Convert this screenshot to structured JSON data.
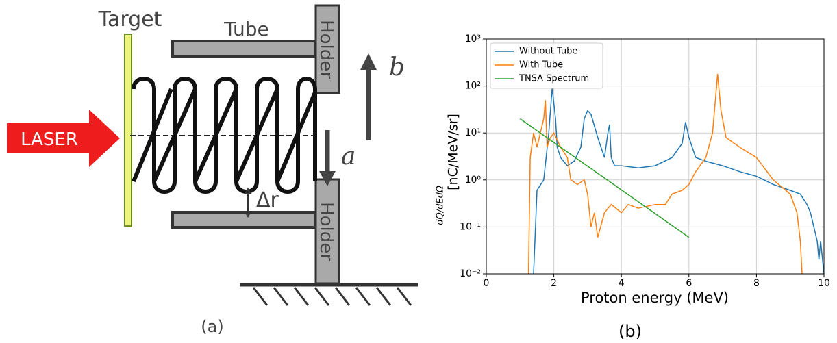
{
  "diagram": {
    "target": "Target",
    "tube": "Tube",
    "holder_top": "Holder",
    "holder_bottom": "Holder",
    "laser": "LASER",
    "arrow_b": "b",
    "arrow_a": "a",
    "gap": "Δr",
    "caption": "(a)"
  },
  "chart_data": {
    "type": "line",
    "caption": "(b)",
    "xlabel": "Proton energy (MeV)",
    "ylabel_fraction": "dQ/dEdΩ",
    "ylabel_units": "[nC/MeV/sr]",
    "log_y": true,
    "grid": true,
    "legend": "upper-left",
    "xlim": [
      0,
      10
    ],
    "xticks": [
      0,
      2,
      4,
      6,
      8,
      10
    ],
    "ylim": [
      0.01,
      1000
    ],
    "yticks": [
      {
        "value": 0.01,
        "label": "10⁻²"
      },
      {
        "value": 0.1,
        "label": "10⁻¹"
      },
      {
        "value": 1,
        "label": "10⁰"
      },
      {
        "value": 10,
        "label": "10¹"
      },
      {
        "value": 100,
        "label": "10²"
      },
      {
        "value": 1000,
        "label": "10³"
      }
    ],
    "series": [
      {
        "name": "Without Tube",
        "color": "#1f77b4",
        "x": [
          1.4,
          1.5,
          1.7,
          1.85,
          1.95,
          2.05,
          2.1,
          2.2,
          2.4,
          2.6,
          2.8,
          2.9,
          3.0,
          3.1,
          3.3,
          3.5,
          3.6,
          3.65,
          3.7,
          3.8,
          4.0,
          4.5,
          5.0,
          5.5,
          5.8,
          5.9,
          6.0,
          6.2,
          6.5,
          7.0,
          7.5,
          8.0,
          8.5,
          9.0,
          9.3,
          9.5,
          9.6,
          9.7,
          9.8,
          9.85,
          9.9,
          10.0
        ],
        "values": [
          0.01,
          0.6,
          1,
          10,
          90,
          20,
          5,
          3,
          2,
          2.5,
          5,
          20,
          30,
          25,
          8,
          3,
          10,
          15,
          3,
          2,
          2,
          1.8,
          2,
          3,
          6,
          17,
          8,
          3,
          2.5,
          2,
          1.5,
          1.2,
          0.8,
          0.6,
          0.5,
          0.3,
          0.2,
          0.1,
          0.05,
          0.02,
          0.05,
          0.01
        ]
      },
      {
        "name": "With Tube",
        "color": "#ff7f0e",
        "x": [
          1.25,
          1.3,
          1.4,
          1.5,
          1.7,
          1.75,
          1.8,
          1.9,
          2.0,
          2.2,
          2.4,
          2.5,
          2.7,
          2.9,
          3.0,
          3.1,
          3.2,
          3.3,
          3.5,
          3.7,
          4.0,
          4.2,
          4.5,
          5.0,
          5.3,
          5.5,
          5.8,
          6.0,
          6.2,
          6.5,
          6.7,
          6.85,
          6.95,
          7.1,
          7.5,
          8.0,
          8.5,
          9.0,
          9.2,
          9.3,
          9.35
        ],
        "values": [
          0.01,
          3,
          10,
          5,
          20,
          50,
          5,
          8,
          10,
          5,
          3,
          1,
          0.8,
          1,
          0.5,
          0.1,
          0.2,
          0.06,
          0.2,
          0.3,
          0.2,
          0.3,
          0.25,
          0.3,
          0.3,
          0.5,
          0.6,
          0.8,
          1.5,
          3,
          10,
          180,
          30,
          8,
          5,
          3,
          1,
          0.5,
          0.2,
          0.05,
          0.01
        ]
      },
      {
        "name": "TNSA Spectrum",
        "color": "#2ca02c",
        "x": [
          1,
          6
        ],
        "values": [
          20,
          0.06
        ]
      }
    ]
  }
}
